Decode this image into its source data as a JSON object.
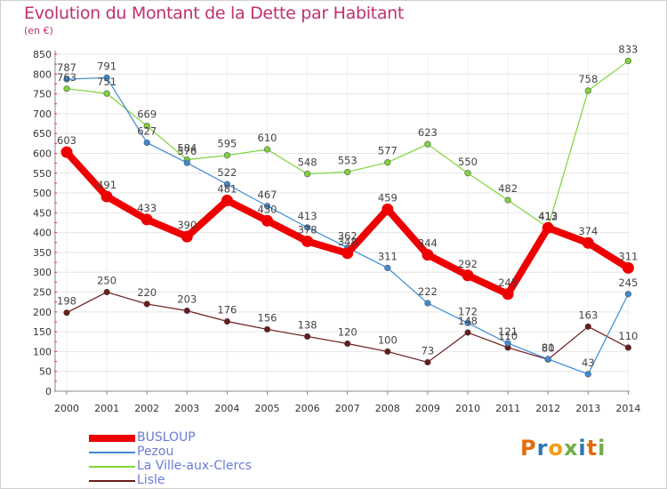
{
  "title": "Evolution du Montant de la Dette par Habitant",
  "subtitle": "(en €)",
  "logo": "Proxiti",
  "logo_colors": [
    "#e36c0a",
    "#2e75b6",
    "#f39c12",
    "#70ad47",
    "#2e75b6",
    "#e36c0a",
    "#70ad47"
  ],
  "chart_data": {
    "type": "line",
    "categories": [
      "2000",
      "2001",
      "2002",
      "2003",
      "2004",
      "2005",
      "2006",
      "2007",
      "2008",
      "2009",
      "2010",
      "2011",
      "2012",
      "2013",
      "2014"
    ],
    "ylim": [
      0,
      850
    ],
    "yticks": [
      0,
      50,
      100,
      150,
      200,
      250,
      300,
      350,
      400,
      450,
      500,
      550,
      600,
      650,
      700,
      750,
      800,
      850
    ],
    "grid": true,
    "legend_position": "bottom-left",
    "series": [
      {
        "name": "BUSLOUP",
        "color": "#ee0000",
        "values": [
          603,
          491,
          433,
          390,
          481,
          430,
          378,
          348,
          459,
          344,
          292,
          245,
          412,
          374,
          311
        ]
      },
      {
        "name": "Pezou",
        "color": "#3d8bd4",
        "values": [
          787,
          791,
          627,
          576,
          522,
          467,
          413,
          362,
          311,
          222,
          172,
          121,
          81,
          43,
          245
        ]
      },
      {
        "name": "La Ville-aux-Clercs",
        "color": "#7fd43a",
        "values": [
          763,
          751,
          669,
          584,
          595,
          610,
          548,
          553,
          577,
          623,
          550,
          482,
          413,
          758,
          833
        ]
      },
      {
        "name": "Lisle",
        "color": "#6b1a1a",
        "values": [
          198,
          250,
          220,
          203,
          176,
          156,
          138,
          120,
          100,
          73,
          148,
          110,
          80,
          163,
          110
        ]
      }
    ]
  }
}
